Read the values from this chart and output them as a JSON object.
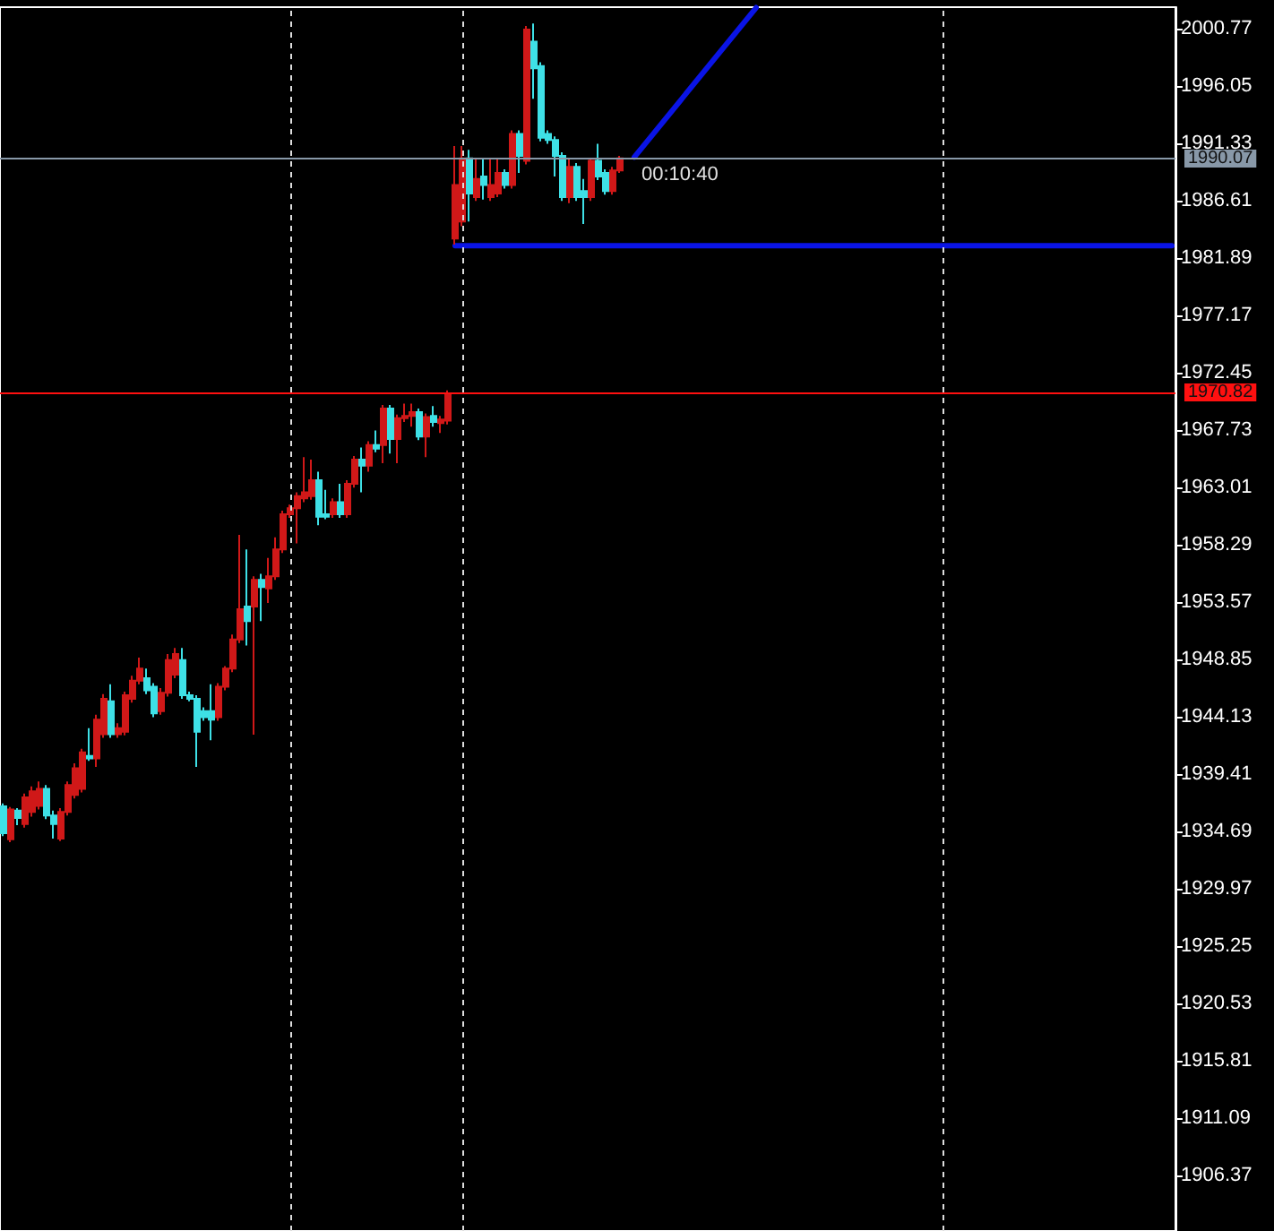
{
  "chart_data": {
    "type": "candlestick",
    "categories": [
      null,
      null,
      null,
      null,
      null,
      null,
      null,
      null,
      null,
      null,
      null,
      null,
      null,
      null,
      null,
      null,
      null,
      null,
      null,
      null,
      null,
      null,
      null,
      null,
      null,
      null,
      null,
      null,
      null,
      null,
      null,
      null,
      null,
      null,
      null,
      null,
      null,
      null,
      null,
      null,
      null,
      null,
      null,
      null,
      null,
      null,
      null,
      null,
      null,
      null,
      null,
      null,
      null,
      null,
      null,
      null,
      null,
      null,
      null,
      null,
      null,
      null,
      null,
      null,
      null,
      null,
      null,
      null,
      null,
      null,
      null,
      null,
      null,
      null,
      null,
      null,
      null,
      null,
      null,
      null,
      null,
      null,
      null,
      null,
      null,
      null,
      null,
      null,
      null,
      null,
      null,
      null,
      null,
      null,
      null,
      null,
      null,
      null,
      null,
      null,
      null,
      null,
      null,
      null,
      null,
      null,
      null,
      null,
      null,
      null,
      null,
      null,
      null,
      null,
      null,
      null,
      null,
      null,
      null,
      null,
      null,
      null,
      null,
      null,
      null,
      null,
      null,
      null,
      null,
      null,
      null,
      null,
      null,
      null,
      null,
      null,
      null,
      null,
      null,
      null,
      null,
      null,
      null,
      null,
      null,
      null,
      null,
      null,
      null,
      null,
      null,
      null,
      null,
      null,
      null,
      null,
      null,
      null,
      null,
      null,
      null,
      null,
      null,
      null
    ],
    "ohlc": [
      [
        1936.76,
        1937.0,
        1934.3,
        1934.54
      ],
      [
        1934.05,
        1936.7,
        1933.8,
        1936.5
      ],
      [
        1936.4,
        1936.6,
        1935.2,
        1935.8
      ],
      [
        1935.3,
        1937.8,
        1935.0,
        1937.5
      ],
      [
        1936.3,
        1938.4,
        1935.9,
        1938.0
      ],
      [
        1936.8,
        1938.8,
        1936.5,
        1938.2
      ],
      [
        1938.2,
        1938.5,
        1935.7,
        1936.0
      ],
      [
        1936.0,
        1936.4,
        1934.1,
        1935.3
      ],
      [
        1934.1,
        1936.6,
        1933.9,
        1936.3
      ],
      [
        1936.3,
        1938.8,
        1936.0,
        1938.5
      ],
      [
        1937.7,
        1940.3,
        1937.4,
        1939.9
      ],
      [
        1938.2,
        1941.5,
        1937.9,
        1941.2
      ],
      [
        1940.9,
        1943.2,
        1940.5,
        1940.7
      ],
      [
        1940.7,
        1944.3,
        1940.0,
        1943.9
      ],
      [
        1942.7,
        1946.0,
        1942.4,
        1945.6
      ],
      [
        1945.4,
        1946.8,
        1942.4,
        1942.7
      ],
      [
        1942.7,
        1943.6,
        1942.4,
        1943.2
      ],
      [
        1942.9,
        1946.2,
        1942.6,
        1945.9
      ],
      [
        1945.6,
        1947.5,
        1945.3,
        1947.1
      ],
      [
        1947.1,
        1949.0,
        1946.8,
        1948.1
      ],
      [
        1947.3,
        1948.1,
        1946.0,
        1946.3
      ],
      [
        1946.6,
        1946.9,
        1944.1,
        1944.4
      ],
      [
        1944.6,
        1946.5,
        1944.3,
        1946.1
      ],
      [
        1946.1,
        1949.3,
        1945.8,
        1948.8
      ],
      [
        1947.6,
        1949.8,
        1947.3,
        1949.3
      ],
      [
        1948.8,
        1949.8,
        1945.6,
        1945.9
      ],
      [
        1945.9,
        1946.2,
        1945.4,
        1945.6
      ],
      [
        1945.6,
        1945.9,
        1940.0,
        1942.9
      ],
      [
        1944.6,
        1944.9,
        1943.8,
        1944.1
      ],
      [
        1944.6,
        1946.8,
        1942.2,
        1943.9
      ],
      [
        1944.1,
        1946.9,
        1943.8,
        1946.6
      ],
      [
        1946.6,
        1948.3,
        1946.3,
        1948.1
      ],
      [
        1948.1,
        1950.9,
        1947.8,
        1950.5
      ],
      [
        1950.5,
        1959.1,
        1950.2,
        1952.98
      ],
      [
        1953.2,
        1957.9,
        1950.0,
        1952.0
      ],
      [
        1953.2,
        1955.7,
        1942.66,
        1955.4
      ],
      [
        1955.4,
        1955.9,
        1952.0,
        1954.8
      ],
      [
        1954.7,
        1957.2,
        1953.5,
        1955.7
      ],
      [
        1955.7,
        1958.9,
        1955.4,
        1957.9
      ],
      [
        1957.9,
        1961.1,
        1957.6,
        1960.8
      ],
      [
        1960.8,
        1961.6,
        1960.5,
        1961.3
      ],
      [
        1961.3,
        1962.6,
        1958.4,
        1962.3
      ],
      [
        1962.1,
        1965.5,
        1961.8,
        1962.6
      ],
      [
        1962.3,
        1965.3,
        1962.0,
        1963.6
      ],
      [
        1963.6,
        1964.3,
        1959.9,
        1960.6
      ],
      [
        1960.8,
        1962.8,
        1960.4,
        1960.6
      ],
      [
        1960.8,
        1962.1,
        1960.5,
        1961.8
      ],
      [
        1961.8,
        1963.3,
        1960.5,
        1960.8
      ],
      [
        1960.8,
        1963.6,
        1960.5,
        1963.3
      ],
      [
        1963.3,
        1965.6,
        1963.0,
        1965.3
      ],
      [
        1965.3,
        1966.3,
        1962.6,
        1964.8
      ],
      [
        1964.8,
        1966.8,
        1964.3,
        1966.5
      ],
      [
        1966.5,
        1967.7,
        1965.9,
        1966.2
      ],
      [
        1966.5,
        1969.8,
        1965.0,
        1969.5
      ],
      [
        1969.5,
        1969.8,
        1965.8,
        1967.0
      ],
      [
        1967.0,
        1969.0,
        1965.0,
        1968.7
      ],
      [
        1968.7,
        1969.9,
        1968.4,
        1968.9
      ],
      [
        1968.9,
        1969.9,
        1968.0,
        1969.2
      ],
      [
        1969.2,
        1969.5,
        1966.9,
        1967.2
      ],
      [
        1967.2,
        1969.1,
        1965.5,
        1968.8
      ],
      [
        1968.9,
        1969.7,
        1968.0,
        1968.4
      ],
      [
        1968.3,
        1968.9,
        1967.5,
        1968.6
      ],
      [
        1968.5,
        1971.0,
        1968.2,
        1970.7
      ],
      [
        1983.5,
        1991.1,
        1983.0,
        1987.9
      ],
      [
        1984.9,
        1991.1,
        1984.5,
        1990.1
      ],
      [
        1990.1,
        1990.8,
        1984.9,
        1987.2
      ],
      [
        1986.9,
        1990.1,
        1986.6,
        1988.4
      ],
      [
        1988.6,
        1990.1,
        1986.7,
        1987.9
      ],
      [
        1986.9,
        1990.1,
        1986.6,
        1987.9
      ],
      [
        1987.2,
        1990.1,
        1986.9,
        1988.9
      ],
      [
        1988.9,
        1989.2,
        1987.6,
        1987.9
      ],
      [
        1987.9,
        1992.4,
        1987.6,
        1992.1
      ],
      [
        1992.1,
        1992.4,
        1988.9,
        1990.3
      ],
      [
        1989.9,
        2001.0,
        1989.6,
        2000.7
      ],
      [
        1999.7,
        2001.2,
        1995.0,
        1997.5
      ],
      [
        1997.7,
        1998.0,
        1991.5,
        1991.8
      ],
      [
        1992.1,
        1992.4,
        1991.3,
        1991.6
      ],
      [
        1991.6,
        1991.9,
        1988.6,
        1990.3
      ],
      [
        1990.3,
        1990.6,
        1986.6,
        1986.9
      ],
      [
        1986.9,
        1990.1,
        1986.4,
        1989.4
      ],
      [
        1989.4,
        1989.7,
        1986.6,
        1986.9
      ],
      [
        1987.4,
        1988.4,
        1984.7,
        1986.9
      ],
      [
        1986.9,
        1990.1,
        1986.6,
        1989.9
      ],
      [
        1989.9,
        1991.3,
        1988.3,
        1988.6
      ],
      [
        1988.9,
        1989.2,
        1987.1,
        1987.4
      ],
      [
        1987.4,
        1989.4,
        1987.1,
        1989.1
      ],
      [
        1989.1,
        1990.3,
        1988.9,
        1990.1
      ],
      null,
      null,
      null,
      null,
      null,
      null,
      null,
      null,
      null,
      null,
      null,
      null,
      null,
      null,
      null,
      null,
      null,
      null,
      null,
      null,
      null,
      null,
      null,
      null,
      null,
      null,
      null,
      null,
      null,
      null,
      null,
      null,
      null,
      null,
      null,
      null,
      null,
      null,
      null,
      null,
      null,
      null,
      null,
      null,
      null,
      null,
      null,
      null,
      null,
      null,
      null,
      null,
      null,
      null,
      null,
      null,
      null,
      null,
      null,
      null,
      null,
      null,
      null,
      null,
      null,
      null,
      null,
      null,
      null,
      null,
      null,
      null,
      null,
      null,
      null,
      null,
      null
    ],
    "colors": [
      "#3ee0e6",
      "#d01818",
      "#3ee0e6",
      "#d01818",
      "#d01818",
      "#d01818",
      "#3ee0e6",
      "#3ee0e6",
      "#d01818",
      "#d01818",
      "#d01818",
      "#d01818",
      "#3ee0e6",
      "#d01818",
      "#d01818",
      "#3ee0e6",
      "#d01818",
      "#d01818",
      "#d01818",
      "#d01818",
      "#3ee0e6",
      "#3ee0e6",
      "#d01818",
      "#d01818",
      "#d01818",
      "#3ee0e6",
      "#3ee0e6",
      "#3ee0e6",
      "#3ee0e6",
      "#3ee0e6",
      "#d01818",
      "#d01818",
      "#d01818",
      "#d01818",
      "#3ee0e6",
      "#d01818",
      "#3ee0e6",
      "#d01818",
      "#d01818",
      "#d01818",
      "#d01818",
      "#d01818",
      "#d01818",
      "#d01818",
      "#3ee0e6",
      "#3ee0e6",
      "#d01818",
      "#3ee0e6",
      "#d01818",
      "#d01818",
      "#3ee0e6",
      "#d01818",
      "#3ee0e6",
      "#d01818",
      "#3ee0e6",
      "#d01818",
      "#d01818",
      "#d01818",
      "#3ee0e6",
      "#d01818",
      "#3ee0e6",
      "#d01818",
      "#d01818",
      "#d01818",
      "#d01818",
      "#3ee0e6",
      "#d01818",
      "#3ee0e6",
      "#d01818",
      "#d01818",
      "#3ee0e6",
      "#d01818",
      "#3ee0e6",
      "#d01818",
      "#3ee0e6",
      "#3ee0e6",
      "#3ee0e6",
      "#3ee0e6",
      "#3ee0e6",
      "#d01818",
      "#3ee0e6",
      "#3ee0e6",
      "#d01818",
      "#3ee0e6",
      "#3ee0e6",
      "#d01818",
      "#d01818",
      null,
      null,
      null,
      null,
      null,
      null,
      null,
      null,
      null,
      null,
      null,
      null,
      null,
      null,
      null,
      null,
      null,
      null,
      null,
      null,
      null,
      null,
      null,
      null,
      null,
      null,
      null,
      null,
      null,
      null,
      null,
      null,
      null,
      null,
      null,
      null,
      null,
      null,
      null,
      null,
      null,
      null,
      null,
      null,
      null,
      null,
      null,
      null,
      null,
      null,
      null,
      null,
      null,
      null,
      null,
      null,
      null,
      null,
      null,
      null,
      null,
      null,
      null,
      null,
      null,
      null,
      null,
      null,
      null,
      null,
      null,
      null,
      null,
      null,
      null,
      null,
      null
    ],
    "series": [
      {
        "type": "line",
        "color": "#0a14e6",
        "values": [
          null,
          null,
          null,
          null,
          null,
          null,
          null,
          null,
          null,
          null,
          null,
          null,
          null,
          null,
          null,
          null,
          null,
          null,
          null,
          null,
          null,
          null,
          null,
          null,
          null,
          null,
          null,
          null,
          null,
          null,
          null,
          null,
          null,
          null,
          null,
          null,
          null,
          null,
          null,
          null,
          null,
          null,
          null,
          null,
          null,
          null,
          null,
          null,
          null,
          null,
          null,
          null,
          null,
          null,
          null,
          null,
          null,
          null,
          null,
          null,
          null,
          null,
          null,
          1982.9,
          null,
          null,
          null,
          null,
          null,
          null,
          null,
          null,
          null,
          null,
          null,
          null,
          null,
          null,
          null,
          null,
          null,
          null,
          null,
          null,
          null,
          null,
          null,
          null,
          null,
          null,
          null,
          null,
          null,
          null,
          null,
          null,
          null,
          null,
          null,
          null,
          null,
          null,
          null,
          null,
          null,
          null,
          null,
          null,
          null,
          null,
          null,
          null,
          null,
          null,
          null,
          null,
          null,
          null,
          null,
          null,
          null,
          null,
          null,
          null,
          null,
          null,
          null,
          null,
          null,
          null,
          null,
          null,
          null,
          null,
          null,
          null,
          null,
          null,
          null,
          null,
          null,
          null,
          null,
          null,
          null,
          null,
          null,
          null,
          null,
          null,
          null,
          null,
          null,
          null,
          null,
          null,
          null,
          null,
          null,
          null,
          null,
          null,
          null,
          1982.9
        ]
      },
      {
        "type": "line",
        "color": "#0a14e6",
        "values": [
          null,
          null,
          null,
          null,
          null,
          null,
          null,
          null,
          null,
          null,
          null,
          null,
          null,
          null,
          null,
          null,
          null,
          null,
          null,
          null,
          null,
          null,
          null,
          null,
          null,
          null,
          null,
          null,
          null,
          null,
          null,
          null,
          null,
          null,
          null,
          null,
          null,
          null,
          null,
          null,
          null,
          null,
          null,
          null,
          null,
          null,
          null,
          null,
          null,
          null,
          null,
          null,
          null,
          null,
          null,
          null,
          null,
          null,
          null,
          null,
          null,
          null,
          null,
          null,
          null,
          null,
          null,
          null,
          null,
          null,
          null,
          null,
          null,
          null,
          null,
          null,
          null,
          null,
          null,
          null,
          null,
          null,
          null,
          null,
          null,
          null,
          null,
          null,
          1990.2,
          null,
          null,
          null,
          null,
          null,
          null,
          null,
          null,
          null,
          null,
          null,
          null,
          null,
          null,
          null,
          null,
          2002.5,
          null,
          null,
          null,
          null,
          null,
          null,
          null,
          null,
          null,
          null,
          null,
          null,
          null,
          null,
          null,
          null,
          null,
          null,
          null,
          null,
          null,
          null,
          null,
          null,
          null,
          null,
          null,
          null,
          null,
          null,
          null,
          null,
          null,
          null,
          null,
          null,
          null,
          null,
          null,
          null,
          null,
          null,
          null,
          null,
          null,
          null,
          null,
          null,
          null,
          null,
          null,
          null,
          null,
          null,
          null,
          null,
          null,
          null
        ]
      }
    ],
    "ylim": [
      1901.8,
      2002.54
    ],
    "yticks": [
      2000.77,
      1996.05,
      1991.33,
      1986.61,
      1981.89,
      1977.17,
      1972.45,
      1967.73,
      1963.01,
      1958.29,
      1953.57,
      1948.85,
      1944.13,
      1939.41,
      1934.69,
      1929.97,
      1925.25,
      1920.53,
      1915.81,
      1911.09,
      1906.37
    ],
    "ref_lines": [
      {
        "axis": "y",
        "value": 1970.82,
        "label": "1970.82",
        "color": "#ff1010"
      },
      {
        "axis": "y",
        "value": 1990.07,
        "label": "1990.07",
        "color": "#8898a8"
      }
    ],
    "annotations": [
      "00:10:40"
    ],
    "grid": false,
    "line_style": "solid",
    "tick_labels": "y"
  }
}
